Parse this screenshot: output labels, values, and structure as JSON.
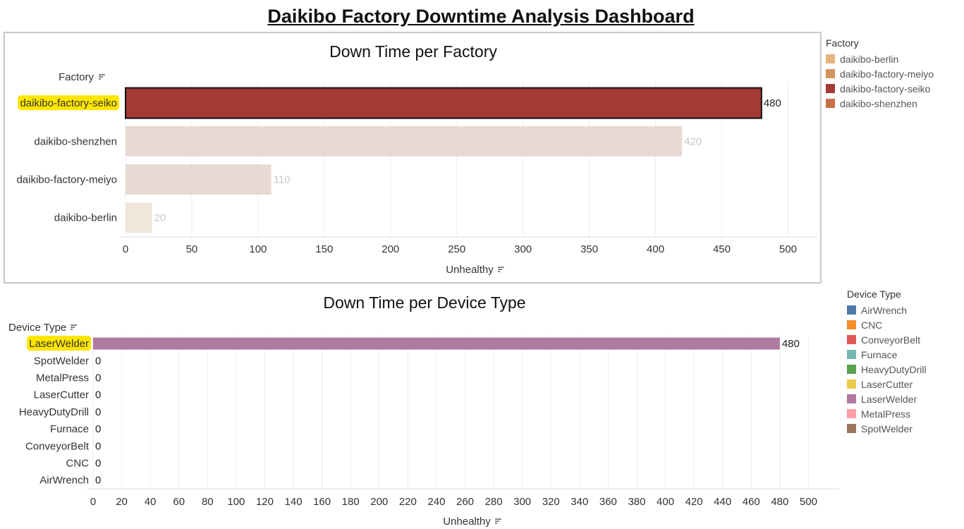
{
  "dashboard": {
    "title": "Daikibo Factory Downtime Analysis Dashboard"
  },
  "chart_data": [
    {
      "type": "bar",
      "orientation": "horizontal",
      "title": "Down Time per Factory",
      "xlabel": "Unhealthy",
      "ylabel": "Factory",
      "categories": [
        "daikibo-factory-seiko",
        "daikibo-shenzhen",
        "daikibo-factory-meiyo",
        "daikibo-berlin"
      ],
      "values": [
        480,
        420,
        110,
        20
      ],
      "bar_colors": [
        "#a33a34",
        "#e8d9d3",
        "#e8d9d3",
        "#f0e6db"
      ],
      "selected": "daikibo-factory-seiko",
      "xlim": [
        0,
        520
      ],
      "xticks": [
        0,
        50,
        100,
        150,
        200,
        250,
        300,
        350,
        400,
        450,
        500
      ],
      "grid": true,
      "legend": {
        "title": "Factory",
        "placement": "right",
        "items": [
          {
            "label": "daikibo-berlin",
            "color": "#e3b57f"
          },
          {
            "label": "daikibo-factory-meiyo",
            "color": "#d29560"
          },
          {
            "label": "daikibo-factory-seiko",
            "color": "#a33a34"
          },
          {
            "label": "daikibo-shenzhen",
            "color": "#c96f46"
          }
        ]
      }
    },
    {
      "type": "bar",
      "orientation": "horizontal",
      "title": "Down Time per Device Type",
      "xlabel": "Unhealthy",
      "ylabel": "Device Type",
      "categories": [
        "LaserWelder",
        "SpotWelder",
        "MetalPress",
        "LaserCutter",
        "HeavyDutyDrill",
        "Furnace",
        "ConveyorBelt",
        "CNC",
        "AirWrench"
      ],
      "values": [
        480,
        0,
        0,
        0,
        0,
        0,
        0,
        0,
        0
      ],
      "bar_color": "#b07aa1",
      "xlim": [
        0,
        520
      ],
      "xticks": [
        0,
        20,
        40,
        60,
        80,
        100,
        120,
        140,
        160,
        180,
        200,
        220,
        240,
        260,
        280,
        300,
        320,
        340,
        360,
        380,
        400,
        420,
        440,
        460,
        480,
        500
      ],
      "grid": true,
      "legend": {
        "title": "Device Type",
        "placement": "right",
        "items": [
          {
            "label": "AirWrench",
            "color": "#4e79a7"
          },
          {
            "label": "CNC",
            "color": "#f28e2b"
          },
          {
            "label": "ConveyorBelt",
            "color": "#e15759"
          },
          {
            "label": "Furnace",
            "color": "#76b7b2"
          },
          {
            "label": "HeavyDutyDrill",
            "color": "#59a14f"
          },
          {
            "label": "LaserCutter",
            "color": "#edc948"
          },
          {
            "label": "LaserWelder",
            "color": "#b07aa1"
          },
          {
            "label": "MetalPress",
            "color": "#ff9da7"
          },
          {
            "label": "SpotWelder",
            "color": "#9c755f"
          }
        ]
      }
    }
  ]
}
